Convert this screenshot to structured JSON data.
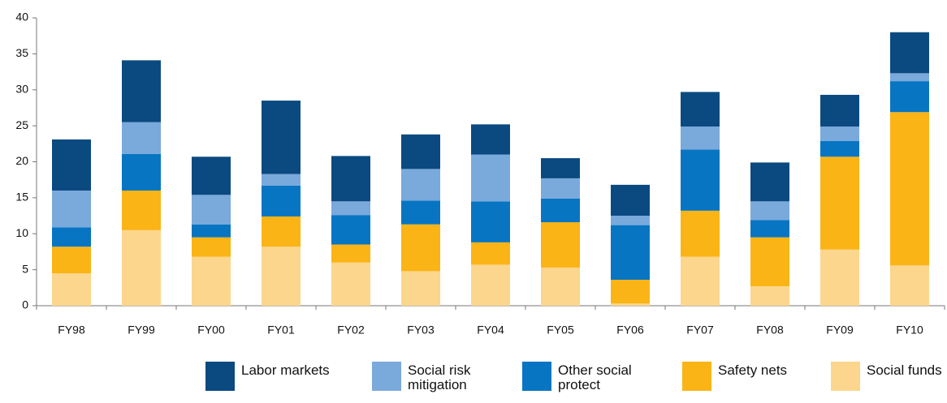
{
  "chart_data": {
    "type": "stacked-bar",
    "categories": [
      "FY98",
      "FY99",
      "FY00",
      "FY01",
      "FY02",
      "FY03",
      "FY04",
      "FY05",
      "FY06",
      "FY07",
      "FY08",
      "FY09",
      "FY10"
    ],
    "series": [
      {
        "name": "Labor markets",
        "color": "#0b4a80",
        "values": [
          7.1,
          8.6,
          5.3,
          10.2,
          6.3,
          4.8,
          4.2,
          2.8,
          4.3,
          4.8,
          5.4,
          4.4,
          5.7
        ]
      },
      {
        "name": "Social risk mitigation",
        "color": "#7aa9dc",
        "values": [
          5.1,
          4.4,
          4.1,
          1.6,
          1.9,
          4.4,
          6.5,
          2.8,
          1.3,
          3.2,
          2.6,
          2.0,
          1.1
        ]
      },
      {
        "name": "Other social protect",
        "color": "#0875c2",
        "values": [
          2.7,
          5.1,
          1.8,
          4.3,
          4.1,
          3.3,
          5.7,
          3.3,
          7.6,
          8.5,
          2.4,
          2.2,
          4.3
        ]
      },
      {
        "name": "Safety nets",
        "color": "#fbb416",
        "values": [
          3.7,
          5.5,
          2.7,
          4.2,
          2.5,
          6.5,
          3.1,
          6.3,
          3.3,
          6.4,
          6.8,
          12.9,
          21.3
        ]
      },
      {
        "name": "Social funds",
        "color": "#fcd68d",
        "values": [
          4.5,
          10.5,
          6.8,
          8.2,
          6.0,
          4.8,
          5.7,
          5.3,
          0.3,
          6.8,
          2.7,
          7.8,
          5.6
        ]
      }
    ],
    "ylim": [
      0,
      40
    ],
    "yticks": [
      0,
      5,
      10,
      15,
      20,
      25,
      30,
      35,
      40
    ],
    "grid": false,
    "legend": "bottom"
  }
}
